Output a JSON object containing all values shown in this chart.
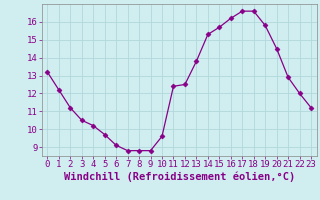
{
  "x": [
    0,
    1,
    2,
    3,
    4,
    5,
    6,
    7,
    8,
    9,
    10,
    11,
    12,
    13,
    14,
    15,
    16,
    17,
    18,
    19,
    20,
    21,
    22,
    23
  ],
  "y": [
    13.2,
    12.2,
    11.2,
    10.5,
    10.2,
    9.7,
    9.1,
    8.8,
    8.8,
    8.8,
    9.6,
    12.4,
    12.5,
    13.8,
    15.3,
    15.7,
    16.2,
    16.6,
    16.6,
    15.8,
    14.5,
    12.9,
    12.0,
    11.2
  ],
  "line_color": "#880088",
  "marker": "D",
  "marker_size": 2.5,
  "bg_color": "#d0eef0",
  "grid_color": "#b0d8dc",
  "xlabel": "Windchill (Refroidissement éolien,°C)",
  "xlabel_fontsize": 7.5,
  "tick_fontsize": 6.5,
  "ylim": [
    8.5,
    17.0
  ],
  "xlim": [
    -0.5,
    23.5
  ],
  "yticks": [
    9,
    10,
    11,
    12,
    13,
    14,
    15,
    16
  ],
  "xticks": [
    0,
    1,
    2,
    3,
    4,
    5,
    6,
    7,
    8,
    9,
    10,
    11,
    12,
    13,
    14,
    15,
    16,
    17,
    18,
    19,
    20,
    21,
    22,
    23
  ],
  "spine_color": "#888888",
  "tick_color": "#880088",
  "label_color": "#880088"
}
